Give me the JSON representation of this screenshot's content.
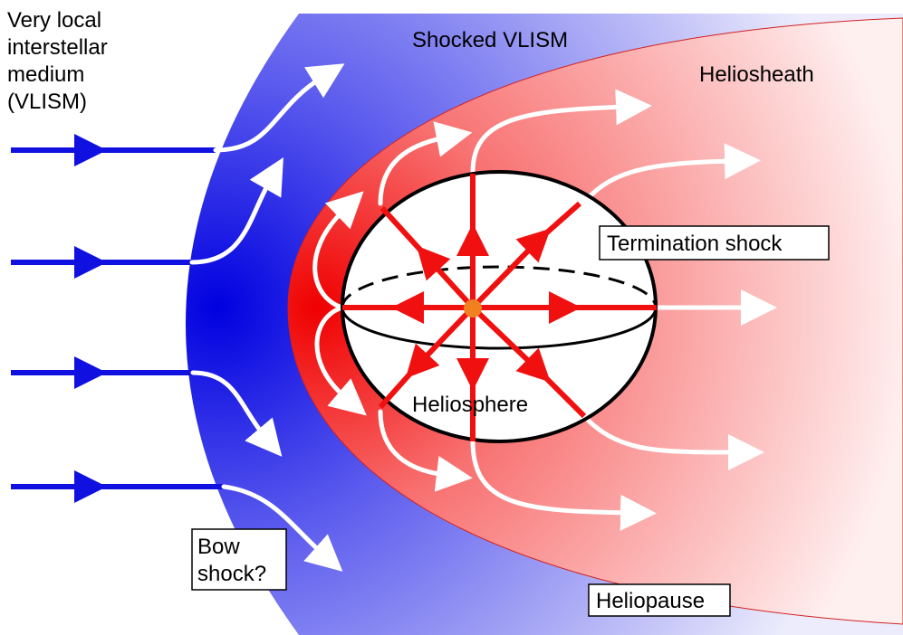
{
  "labels": {
    "vlism": [
      "Very local",
      "interstellar",
      "medium",
      "(VLISM)"
    ],
    "shocked_vlism": "Shocked VLISM",
    "heliosheath": "Heliosheath",
    "termination_shock": "Termination shock",
    "heliosphere": "Heliosphere",
    "bow_shock": [
      "Bow",
      "shock?"
    ],
    "heliopause": "Heliopause"
  }
}
